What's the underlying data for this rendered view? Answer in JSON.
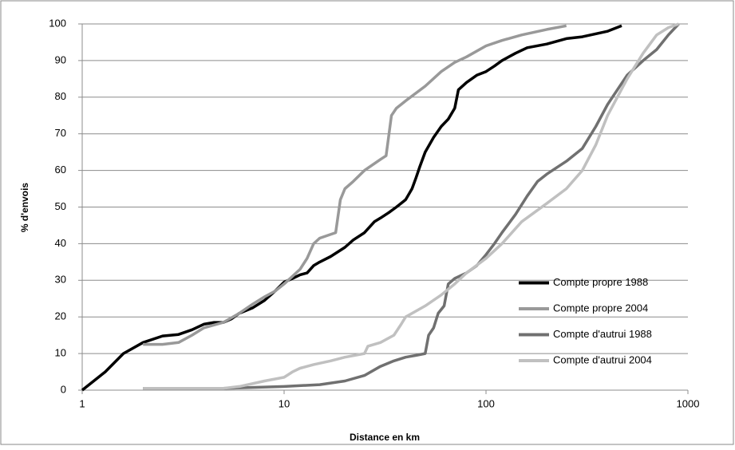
{
  "chart_data": {
    "type": "line",
    "x_label": "Distance en km",
    "y_label": "% d'envois",
    "log_x": true,
    "grid": true,
    "legend": "lower right",
    "xlim": [
      1,
      1000
    ],
    "xticks": [
      1,
      10,
      100,
      1000
    ],
    "ylim": [
      0,
      100
    ],
    "yticks": [
      0,
      10,
      20,
      30,
      40,
      50,
      60,
      70,
      80,
      90,
      100
    ],
    "series": [
      {
        "name": "Compte propre 1988",
        "color": "#000000",
        "x": [
          1,
          1.3,
          1.6,
          2,
          2.5,
          3,
          3.5,
          4,
          4.5,
          5,
          5.5,
          6,
          7,
          8,
          9,
          10,
          11,
          12,
          13,
          14,
          15,
          17,
          20,
          22,
          25,
          28,
          30,
          33,
          36,
          40,
          43,
          45,
          47,
          50,
          55,
          60,
          65,
          70,
          73,
          80,
          90,
          100,
          110,
          120,
          140,
          160,
          200,
          250,
          300,
          400,
          470
        ],
        "values": [
          0,
          5,
          10,
          13,
          14.8,
          15.2,
          16.5,
          18,
          18.5,
          18.5,
          19.5,
          21,
          22.5,
          24.5,
          27,
          29.5,
          30.5,
          31.5,
          32,
          34,
          35,
          36.5,
          39,
          41,
          43,
          46,
          47,
          48.5,
          50,
          52,
          55,
          58,
          61,
          65,
          69,
          72,
          74,
          77,
          82,
          84,
          86,
          87,
          88.5,
          90,
          92,
          93.5,
          94.5,
          96,
          96.5,
          98,
          99.5
        ]
      },
      {
        "name": "Compte propre 2004",
        "color": "#999999",
        "x": [
          2,
          2.5,
          3,
          3.5,
          4,
          5,
          6,
          7,
          8,
          9,
          10,
          12,
          13,
          14,
          15,
          18,
          19,
          20,
          22,
          25,
          30,
          32,
          34,
          36,
          40,
          50,
          60,
          70,
          80,
          100,
          120,
          150,
          200,
          250
        ],
        "values": [
          12.5,
          12.5,
          13,
          15,
          17,
          18.5,
          21,
          23.5,
          25.5,
          27,
          29,
          33,
          36,
          40,
          41.5,
          43,
          52,
          55,
          57,
          60,
          63,
          64,
          75,
          77,
          79,
          83,
          87,
          89.5,
          91,
          94,
          95.5,
          97,
          98.5,
          99.5
        ]
      },
      {
        "name": "Compte d'autrui 1988",
        "color": "#707070",
        "x": [
          2,
          5,
          10,
          15,
          20,
          25,
          30,
          35,
          40,
          45,
          50,
          52,
          55,
          58,
          62,
          65,
          70,
          80,
          90,
          100,
          110,
          120,
          140,
          160,
          180,
          200,
          250,
          300,
          350,
          400,
          500,
          600,
          700,
          800,
          900
        ],
        "values": [
          0.5,
          0.5,
          1,
          1.5,
          2.5,
          4,
          6.5,
          8,
          9,
          9.5,
          10,
          15,
          17,
          21,
          23,
          29,
          30.5,
          32,
          34,
          37,
          40,
          43,
          48,
          53,
          57,
          59,
          62.5,
          66,
          72,
          78,
          86,
          90,
          93,
          97,
          100
        ]
      },
      {
        "name": "Compte d'autrui 2004",
        "color": "#c0c0c0",
        "x": [
          2,
          5,
          6,
          8,
          10,
          11,
          12,
          14,
          17,
          20,
          25,
          26,
          30,
          35,
          38,
          40,
          50,
          60,
          70,
          80,
          100,
          120,
          150,
          200,
          250,
          300,
          350,
          400,
          500,
          600,
          700,
          800,
          900
        ],
        "values": [
          0.5,
          0.5,
          1,
          2.5,
          3.5,
          5,
          6,
          7,
          8,
          9,
          10,
          12,
          13,
          15,
          18,
          20,
          23,
          26,
          29,
          32,
          36,
          40,
          46,
          51,
          55,
          60,
          67,
          75,
          85,
          92,
          97,
          99,
          100
        ]
      }
    ]
  }
}
